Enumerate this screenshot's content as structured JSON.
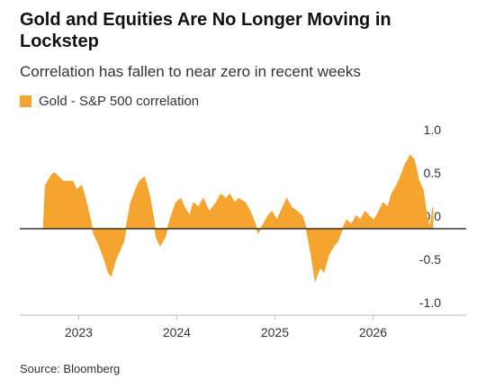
{
  "chart_data": {
    "type": "area",
    "title": "Gold and Equities Are No Longer Moving in Lockstep",
    "subtitle": "Correlation has fallen to near zero in recent weeks",
    "source": "Source: Bloomberg",
    "series": [
      {
        "name": "Gold - S&P 500 correlation",
        "color": "#f5a430",
        "x": [
          2022.64,
          2022.66,
          2022.71,
          2022.75,
          2022.84,
          2022.94,
          2022.98,
          2023.03,
          2023.07,
          2023.12,
          2023.15,
          2023.21,
          2023.26,
          2023.3,
          2023.33,
          2023.38,
          2023.42,
          2023.46,
          2023.49,
          2023.53,
          2023.58,
          2023.62,
          2023.67,
          2023.72,
          2023.76,
          2023.79,
          2023.83,
          2023.88,
          2023.93,
          2023.99,
          2024.04,
          2024.08,
          2024.13,
          2024.17,
          2024.22,
          2024.27,
          2024.33,
          2024.4,
          2024.45,
          2024.5,
          2024.54,
          2024.59,
          2024.63,
          2024.7,
          2024.75,
          2024.8,
          2024.83,
          2024.88,
          2024.93,
          2024.97,
          2025.02,
          2025.06,
          2025.12,
          2025.17,
          2025.23,
          2025.28,
          2025.32,
          2025.37,
          2025.41,
          2025.46,
          2025.5,
          2025.55,
          2025.6,
          2025.64,
          2025.69,
          2025.73,
          2025.78,
          2025.83,
          2025.87,
          2025.92,
          2025.96,
          2026.01,
          2026.06,
          2026.1,
          2026.15,
          2026.19,
          2026.24,
          2026.28,
          2026.33,
          2026.38,
          2026.42,
          2026.47,
          2026.51,
          2026.55,
          2026.58,
          2026.61
        ],
        "values": [
          0.0,
          0.5,
          0.6,
          0.65,
          0.55,
          0.55,
          0.45,
          0.5,
          0.35,
          0.1,
          -0.05,
          -0.2,
          -0.35,
          -0.5,
          -0.55,
          -0.35,
          -0.25,
          -0.15,
          0.05,
          0.3,
          0.45,
          0.55,
          0.6,
          0.4,
          0.15,
          -0.1,
          -0.2,
          -0.1,
          0.1,
          0.3,
          0.35,
          0.25,
          0.15,
          0.3,
          0.25,
          0.35,
          0.2,
          0.3,
          0.4,
          0.35,
          0.4,
          0.3,
          0.35,
          0.3,
          0.2,
          0.05,
          -0.05,
          0.05,
          0.15,
          0.2,
          0.1,
          0.2,
          0.35,
          0.25,
          0.2,
          0.15,
          0.0,
          -0.3,
          -0.6,
          -0.45,
          -0.5,
          -0.3,
          -0.2,
          -0.15,
          0.0,
          0.1,
          0.05,
          0.15,
          0.1,
          0.2,
          0.15,
          0.1,
          0.2,
          0.3,
          0.25,
          0.4,
          0.5,
          0.6,
          0.75,
          0.85,
          0.8,
          0.55,
          0.45,
          0.15,
          0.0,
          0.25
        ]
      }
    ],
    "xlim": [
      2022.4,
      2026.95
    ],
    "xticks": [
      2023,
      2024,
      2025,
      2026
    ],
    "ylim": [
      -1,
      1
    ],
    "yticks": [
      {
        "value": 1,
        "label": "1.0"
      },
      0.5,
      {
        "value": 0,
        "label": "0.0"
      },
      -0.5,
      {
        "value": -1,
        "label": "-1.0"
      }
    ],
    "grid": false,
    "legend": "top-left"
  }
}
